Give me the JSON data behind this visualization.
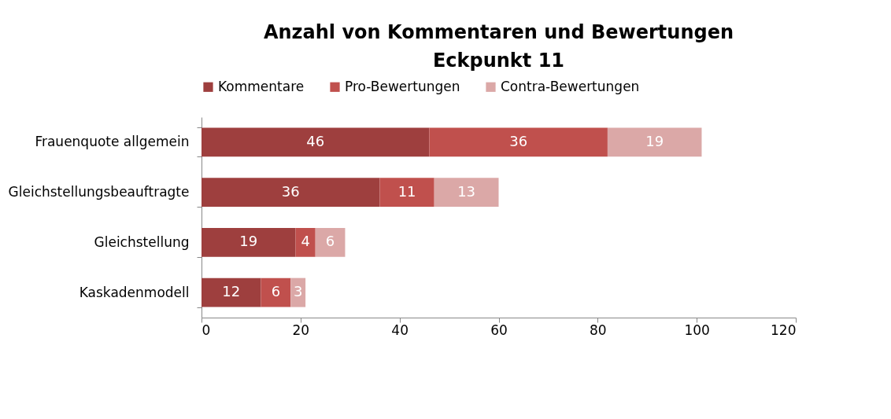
{
  "chart_data": {
    "type": "bar",
    "orientation": "horizontal",
    "stacked": true,
    "title": "Anzahl von Kommentaren und Bewertungen\nEckpunkt 11",
    "categories": [
      "Frauenquote allgemein",
      "Gleichstellungsbeauftragte",
      "Gleichstellung",
      "Kaskadenmodell"
    ],
    "series": [
      {
        "name": "Kommentare",
        "color": "#9e3f3e",
        "values": [
          46,
          36,
          19,
          12
        ]
      },
      {
        "name": "Pro-Bewertungen",
        "color": "#c0504d",
        "values": [
          36,
          11,
          4,
          6
        ]
      },
      {
        "name": "Contra-Bewertungen",
        "color": "#dba8a7",
        "values": [
          19,
          13,
          6,
          3
        ]
      }
    ],
    "xlim": [
      0,
      120
    ],
    "xticks": [
      0,
      20,
      40,
      60,
      80,
      100,
      120
    ],
    "grid": false,
    "legend": "top",
    "data_labels": true
  }
}
